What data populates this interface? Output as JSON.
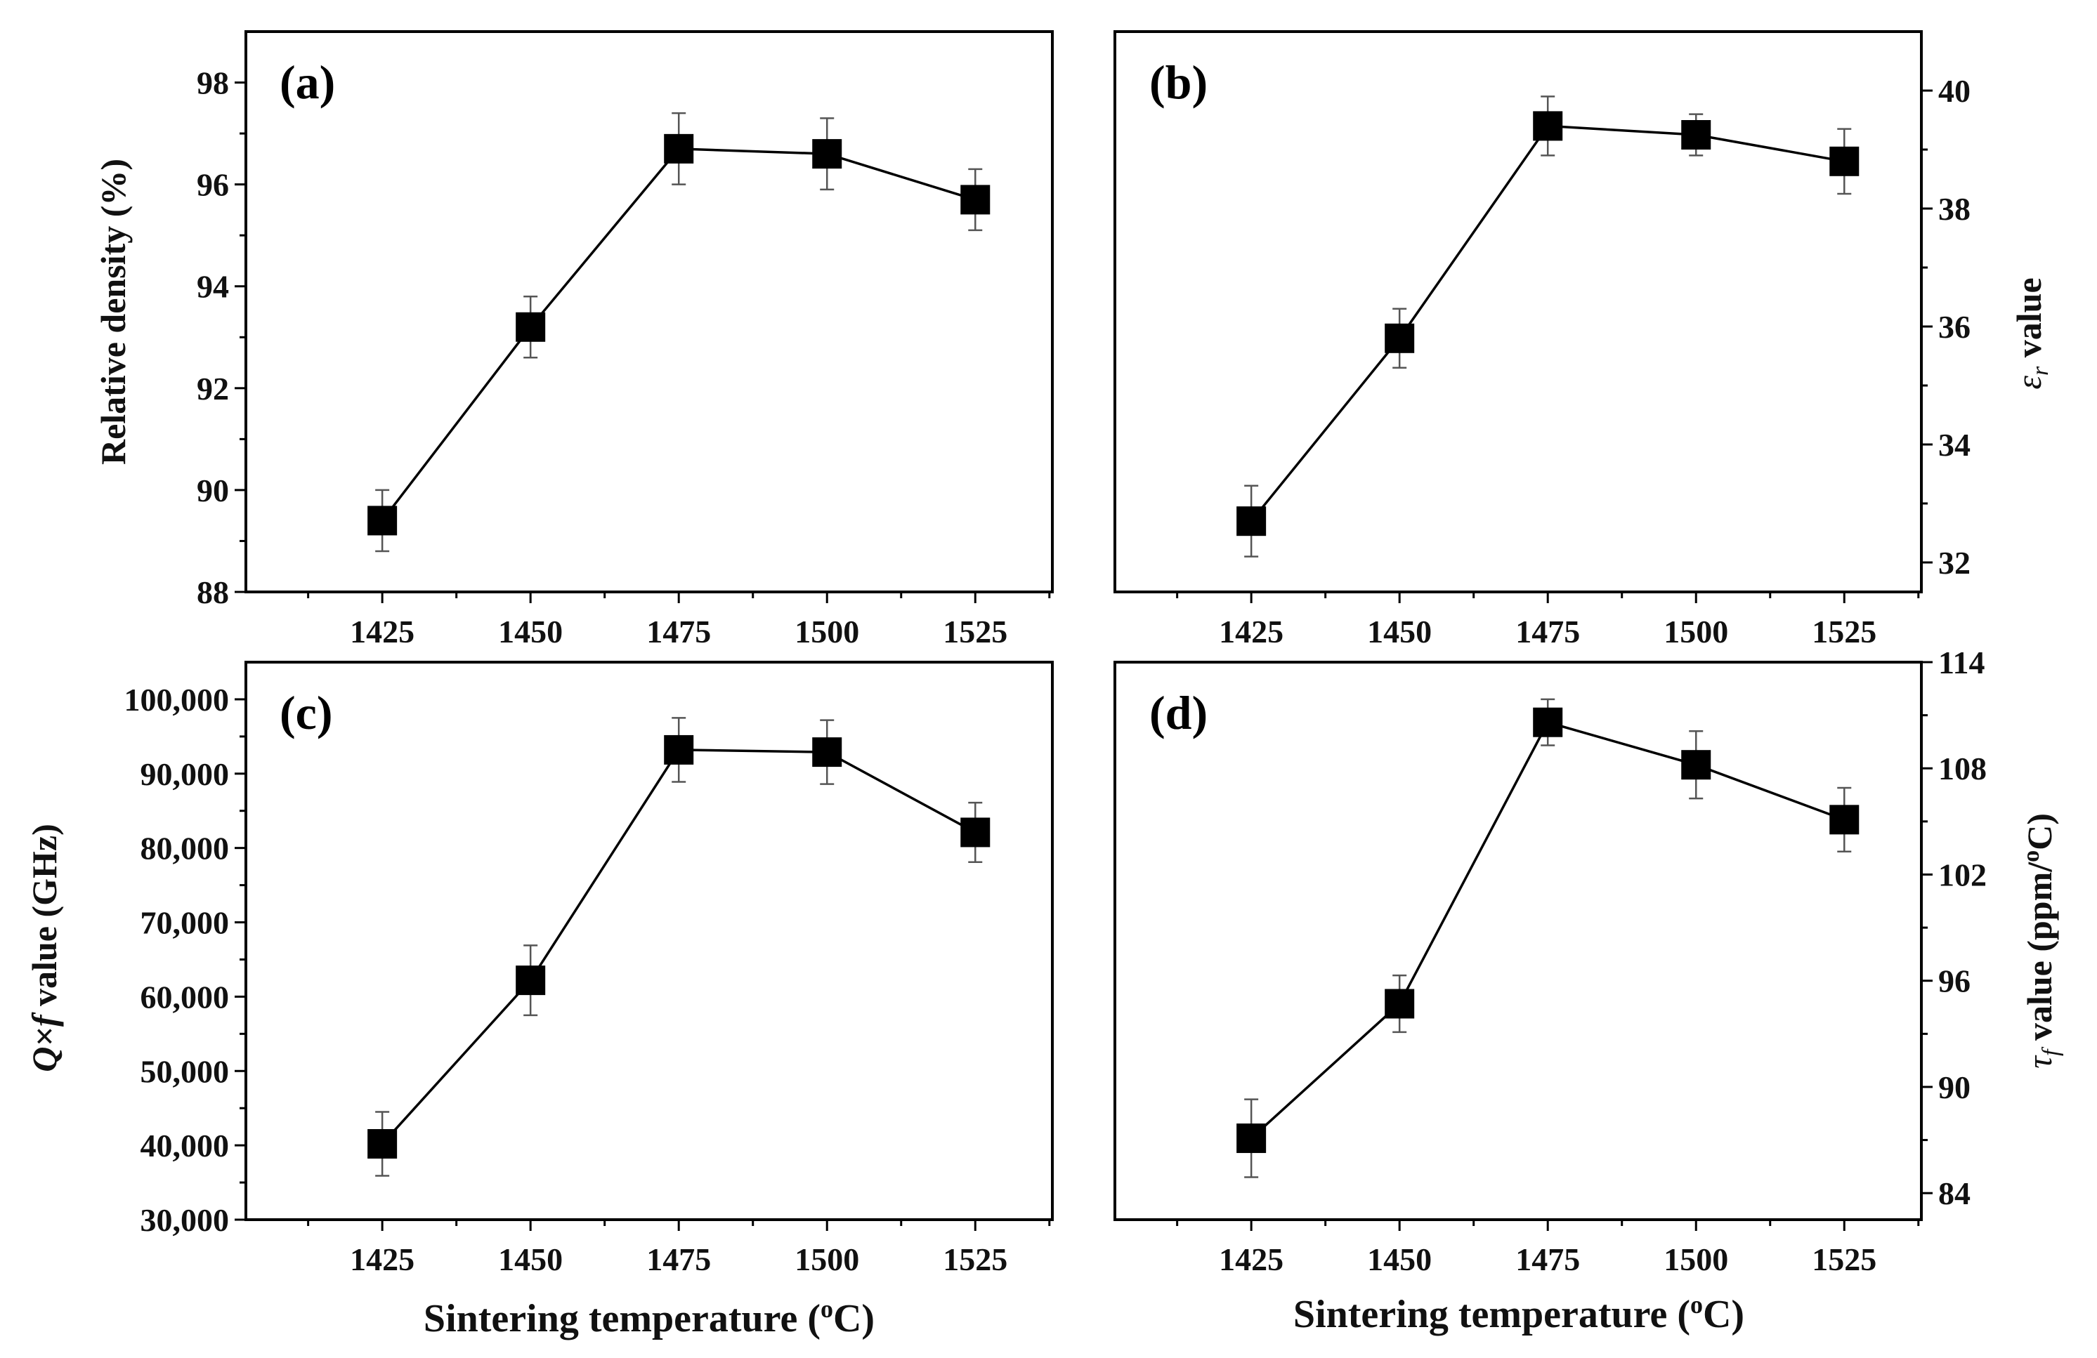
{
  "figure": {
    "xlabel_text": "Sintering temperature (",
    "xlabel_degree": "o",
    "xlabel_unit": "C)"
  },
  "chart_data": [
    {
      "id": "a",
      "type": "line",
      "panel_label": "(a)",
      "title": "",
      "x": [
        1425,
        1450,
        1475,
        1500,
        1525
      ],
      "xlim": [
        1402,
        1538
      ],
      "xticks": [
        1425,
        1450,
        1475,
        1500,
        1525
      ],
      "xtick_labels": [
        "1425",
        "1450",
        "1475",
        "1500",
        "1525"
      ],
      "xlabel": "",
      "series": [
        {
          "name": "Relative density",
          "values": [
            89.4,
            93.2,
            96.7,
            96.6,
            95.7
          ],
          "errors": [
            0.6,
            0.6,
            0.7,
            0.7,
            0.6
          ]
        }
      ],
      "ylim": [
        88,
        99
      ],
      "yticks": [
        88,
        90,
        92,
        94,
        96,
        98
      ],
      "ytick_labels": [
        "88",
        "90",
        "92",
        "94",
        "96",
        "98"
      ],
      "ylabel": "Relative density (%)",
      "y_axis_side": "left",
      "show_xlabel": false
    },
    {
      "id": "b",
      "type": "line",
      "panel_label": "(b)",
      "title": "",
      "x": [
        1425,
        1450,
        1475,
        1500,
        1525
      ],
      "xlim": [
        1402,
        1538
      ],
      "xticks": [
        1425,
        1450,
        1475,
        1500,
        1525
      ],
      "xtick_labels": [
        "1425",
        "1450",
        "1475",
        "1500",
        "1525"
      ],
      "xlabel": "",
      "series": [
        {
          "name": "εr value",
          "values": [
            32.7,
            35.8,
            39.4,
            39.25,
            38.8
          ],
          "errors": [
            0.6,
            0.5,
            0.5,
            0.35,
            0.55
          ]
        }
      ],
      "ylim": [
        31.5,
        41
      ],
      "yticks": [
        32,
        34,
        36,
        38,
        40
      ],
      "ytick_labels": [
        "32",
        "34",
        "36",
        "38",
        "40"
      ],
      "ylabel_symbol": "ε",
      "ylabel_sub": "r",
      "ylabel_rest": " value",
      "y_axis_side": "right",
      "show_xlabel": false
    },
    {
      "id": "c",
      "type": "line",
      "panel_label": "(c)",
      "title": "",
      "x": [
        1425,
        1450,
        1475,
        1500,
        1525
      ],
      "xlim": [
        1402,
        1538
      ],
      "xticks": [
        1425,
        1450,
        1475,
        1500,
        1525
      ],
      "xtick_labels": [
        "1425",
        "1450",
        "1475",
        "1500",
        "1525"
      ],
      "xlabel": "Sintering temperature (°C)",
      "series": [
        {
          "name": "Q×f value",
          "values": [
            40200,
            62200,
            93200,
            92900,
            82100
          ],
          "errors": [
            4300,
            4700,
            4300,
            4300,
            4000
          ]
        }
      ],
      "ylim": [
        30000,
        105000
      ],
      "yticks": [
        30000,
        40000,
        50000,
        60000,
        70000,
        80000,
        90000,
        100000
      ],
      "ytick_labels": [
        "30,000",
        "40,000",
        "50,000",
        "60,000",
        "70,000",
        "80,000",
        "90,000",
        "100,000"
      ],
      "ylabel_italic": "Q×f",
      "ylabel_rest": " value (GHz)",
      "y_axis_side": "left",
      "show_xlabel": true
    },
    {
      "id": "d",
      "type": "line",
      "panel_label": "(d)",
      "title": "",
      "x": [
        1425,
        1450,
        1475,
        1500,
        1525
      ],
      "xlim": [
        1402,
        1538
      ],
      "xticks": [
        1425,
        1450,
        1475,
        1500,
        1525
      ],
      "xtick_labels": [
        "1425",
        "1450",
        "1475",
        "1500",
        "1525"
      ],
      "xlabel": "Sintering temperature (°C)",
      "series": [
        {
          "name": "τf value",
          "values": [
            87.1,
            94.7,
            110.6,
            108.2,
            105.1
          ],
          "errors": [
            2.2,
            1.6,
            1.3,
            1.9,
            1.8
          ]
        }
      ],
      "ylim": [
        82.5,
        114
      ],
      "yticks": [
        84,
        90,
        96,
        102,
        108,
        114
      ],
      "ytick_labels": [
        "84",
        "90",
        "96",
        "102",
        "108",
        "114"
      ],
      "ylabel_symbol": "τ",
      "ylabel_sub": "f",
      "ylabel_rest": " value (ppm/",
      "ylabel_deg": "o",
      "ylabel_unit": "C)",
      "y_axis_side": "right",
      "show_xlabel": true
    }
  ]
}
